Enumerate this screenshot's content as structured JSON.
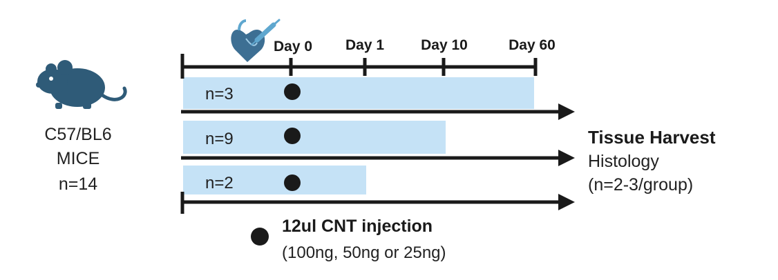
{
  "mouse": {
    "strain": "C57/BL6",
    "kind": "MICE",
    "count": "n=14"
  },
  "timeline": {
    "days": [
      "Day 0",
      "Day 1",
      "Day 10",
      "Day 60"
    ]
  },
  "groups": [
    {
      "label": "n=3",
      "end_day": "Day 60"
    },
    {
      "label": "n=9",
      "end_day": "Day 10"
    },
    {
      "label": "n=2",
      "end_day": "Day 1"
    }
  ],
  "outcome": {
    "title": "Tissue Harvest",
    "line1": "Histology",
    "line2": "(n=2-3/group)"
  },
  "legend": {
    "title": "12ul CNT injection",
    "detail": "(100ng, 50ng or 25ng)"
  },
  "colors": {
    "band": "#c5e2f6",
    "line": "#1a1a1a",
    "mouse": "#2f5b78",
    "heart": "#3d6f93",
    "syringe": "#5fa7cf"
  },
  "icons": {
    "mouse": "mouse-icon",
    "heart": "heart-icon",
    "syringe": "syringe-icon",
    "injection_marker": "filled-circle"
  }
}
